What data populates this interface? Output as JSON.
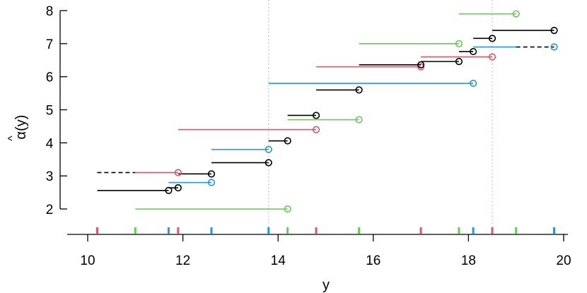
{
  "chart_data": {
    "type": "segments",
    "title": "",
    "xlabel": "y",
    "ylabel": "α̂(y)",
    "ylabel_base": "α(y)",
    "ylabel_hat": "^",
    "xlim": [
      10,
      20
    ],
    "ylim": [
      1.35,
      8.1
    ],
    "x_ticks": [
      10,
      12,
      14,
      16,
      18,
      20
    ],
    "y_ticks": [
      2,
      3,
      4,
      5,
      6,
      7,
      8
    ],
    "x_tick_labels": [
      "10",
      "12",
      "14",
      "16",
      "18",
      "20"
    ],
    "y_tick_labels": [
      "2",
      "3",
      "4",
      "5",
      "6",
      "7",
      "8"
    ],
    "reference_lines_x": [
      13.8,
      18.5
    ],
    "colors": {
      "black": "#000000",
      "red": "#DF536B",
      "green": "#61D04F",
      "blue": "#2297E6"
    },
    "segments": [
      {
        "x0": 11.0,
        "x1": 14.2,
        "y": 2.0,
        "color": "green"
      },
      {
        "x0": 10.2,
        "x1": 11.7,
        "y": 2.56,
        "color": "black"
      },
      {
        "x0": 11.7,
        "x1": 11.9,
        "y": 2.64,
        "color": "black"
      },
      {
        "x0": 11.7,
        "x1": 12.6,
        "y": 2.8,
        "color": "blue"
      },
      {
        "x0": 11.9,
        "x1": 12.6,
        "y": 3.06,
        "color": "black"
      },
      {
        "x0": 10.2,
        "x1": 11.9,
        "y": 3.1,
        "color": "red",
        "dashed_to": 11.0
      },
      {
        "x0": 12.6,
        "x1": 13.8,
        "y": 3.4,
        "color": "black"
      },
      {
        "x0": 12.6,
        "x1": 13.8,
        "y": 3.8,
        "color": "blue"
      },
      {
        "x0": 13.8,
        "x1": 14.2,
        "y": 4.06,
        "color": "black"
      },
      {
        "x0": 11.9,
        "x1": 14.8,
        "y": 4.4,
        "color": "red"
      },
      {
        "x0": 14.2,
        "x1": 15.7,
        "y": 4.7,
        "color": "green"
      },
      {
        "x0": 14.2,
        "x1": 14.8,
        "y": 4.83,
        "color": "black"
      },
      {
        "x0": 14.8,
        "x1": 15.7,
        "y": 5.6,
        "color": "black"
      },
      {
        "x0": 13.8,
        "x1": 18.1,
        "y": 5.8,
        "color": "blue"
      },
      {
        "x0": 14.8,
        "x1": 17.0,
        "y": 6.3,
        "color": "red"
      },
      {
        "x0": 15.7,
        "x1": 17.0,
        "y": 6.36,
        "color": "black"
      },
      {
        "x0": 17.0,
        "x1": 17.8,
        "y": 6.46,
        "color": "black"
      },
      {
        "x0": 17.0,
        "x1": 18.5,
        "y": 6.6,
        "color": "red"
      },
      {
        "x0": 17.8,
        "x1": 18.1,
        "y": 6.76,
        "color": "black"
      },
      {
        "x0": 18.1,
        "x1": 19.8,
        "y": 6.9,
        "color": "blue",
        "dashed_from": 19.0
      },
      {
        "x0": 15.7,
        "x1": 17.8,
        "y": 7.0,
        "color": "green"
      },
      {
        "x0": 18.1,
        "x1": 18.5,
        "y": 7.16,
        "color": "black"
      },
      {
        "x0": 18.5,
        "x1": 19.8,
        "y": 7.4,
        "color": "black"
      },
      {
        "x0": 17.8,
        "x1": 19.0,
        "y": 7.9,
        "color": "green"
      }
    ],
    "rug_marks": [
      {
        "x": 10.2,
        "color": "red"
      },
      {
        "x": 11.0,
        "color": "green"
      },
      {
        "x": 11.7,
        "color": "blue"
      },
      {
        "x": 11.9,
        "color": "red"
      },
      {
        "x": 12.6,
        "color": "blue"
      },
      {
        "x": 13.8,
        "color": "blue"
      },
      {
        "x": 14.2,
        "color": "green"
      },
      {
        "x": 14.8,
        "color": "red"
      },
      {
        "x": 15.7,
        "color": "green"
      },
      {
        "x": 17.0,
        "color": "red"
      },
      {
        "x": 17.8,
        "color": "green"
      },
      {
        "x": 18.1,
        "color": "blue"
      },
      {
        "x": 18.5,
        "color": "red"
      },
      {
        "x": 19.0,
        "color": "green"
      },
      {
        "x": 19.8,
        "color": "blue"
      }
    ]
  }
}
